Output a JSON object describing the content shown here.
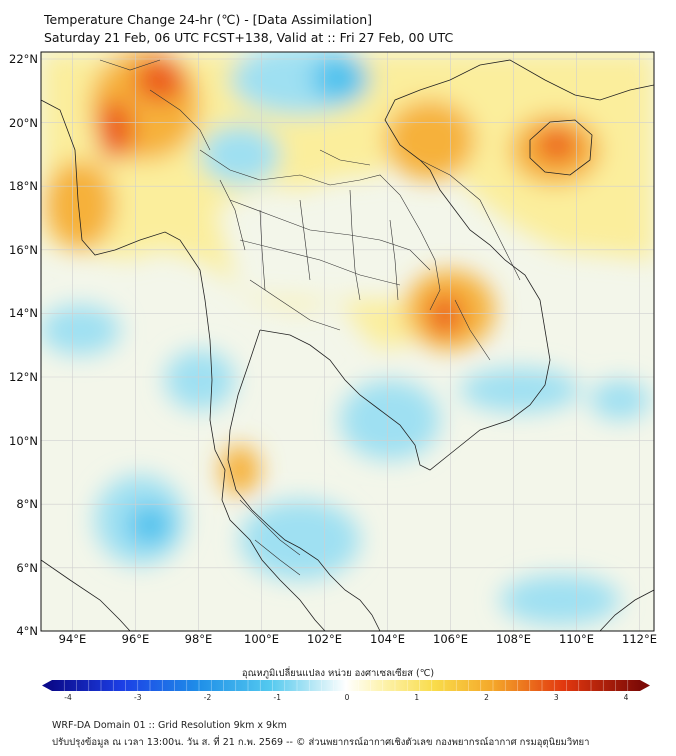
{
  "header": {
    "title_line1": "Temperature Change 24-hr (℃) - [Data Assimilation]",
    "title_line2": "Saturday 21 Feb, 06 UTC FCST+138, Valid at :: Fri 27 Feb, 00 UTC"
  },
  "map": {
    "lat_labels": [
      "22°N",
      "20°N",
      "18°N",
      "16°N",
      "14°N",
      "12°N",
      "10°N",
      "8°N",
      "6°N",
      "4°N"
    ],
    "lon_labels": [
      "94°E",
      "96°E",
      "98°E",
      "100°E",
      "102°E",
      "104°E",
      "106°E",
      "108°E",
      "110°E",
      "112°E"
    ],
    "colors": {
      "ocean_base": "#f3f6ea",
      "land_base": "#fbee9c",
      "warm": "#f6b13a",
      "hot": "#ec5a1c",
      "cool": "#9fe0f2",
      "cold": "#4fc2ee",
      "coast": "#222222",
      "grid": "#cfcfcf"
    }
  },
  "colorbar": {
    "title": "อุณหภูมิเปลี่ยนแปลง หน่วย องศาเซลเซียส (℃)",
    "ticks": [
      "-4",
      "-3",
      "-2",
      "-1",
      "0",
      "1",
      "2",
      "3",
      "4"
    ],
    "min": -4,
    "max": 4
  },
  "footer": {
    "line1": "WRF-DA Domain 01 :: Grid Resolution 9km x 9km",
    "line2": "ปรับปรุงข้อมูล ณ เวลา 13:00น. วัน ส. ที่ 21 ก.พ. 2569 -- © ส่วนพยากรณ์อากาศเชิงตัวเลข กองพยากรณ์อากาศ กรมอุตุนิยมวิทยา"
  }
}
